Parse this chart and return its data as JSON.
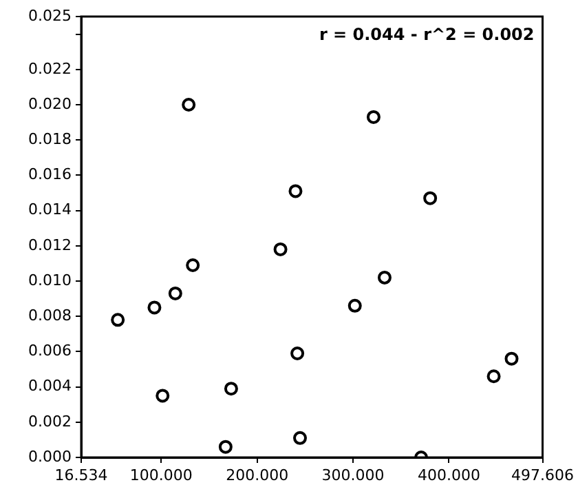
{
  "chart_data": {
    "type": "scatter",
    "marker": "circle",
    "grid": false,
    "legend": false,
    "annotations": [
      "r = 0.044 - r^2 = 0.002"
    ],
    "xlim": [
      16.534,
      497.606
    ],
    "xticks": [
      16.534,
      {
        "value": 100,
        "label": "100.000"
      },
      {
        "value": 200,
        "label": "200.000"
      },
      {
        "value": 300,
        "label": "300.000"
      },
      {
        "value": 400,
        "label": "400.000"
      },
      497.606
    ],
    "ylim": [
      0,
      0.025
    ],
    "yticks": [
      {
        "value": 0,
        "label": "0.000"
      },
      {
        "value": 0.002,
        "label": "0.002"
      },
      {
        "value": 0.004,
        "label": "0.004"
      },
      {
        "value": 0.006,
        "label": "0.006"
      },
      {
        "value": 0.008,
        "label": "0.008"
      },
      {
        "value": 0.01,
        "label": "0.010"
      },
      {
        "value": 0.012,
        "label": "0.012"
      },
      {
        "value": 0.014,
        "label": "0.014"
      },
      {
        "value": 0.016,
        "label": "0.016"
      },
      {
        "value": 0.018,
        "label": "0.018"
      },
      {
        "value": 0.02,
        "label": "0.020"
      },
      {
        "value": 0.022,
        "label": "0.022"
      },
      {
        "value": 0.024,
        "label": null
      },
      {
        "value": 0.025,
        "label": "0.025"
      }
    ],
    "series": [
      {
        "color": "#000000",
        "x": [
          128.6,
          240.0,
          224.3,
          132.9,
          114.7,
          92.9,
          54.7,
          301.9,
          241.9,
          101.4,
          172.9,
          244.7,
          167.1,
          321.4,
          380.4,
          332.9,
          446.7,
          465.3,
          371.0
        ],
        "values": [
          0.02,
          0.0151,
          0.0118,
          0.0109,
          0.0093,
          0.0085,
          0.0078,
          0.0086,
          0.0059,
          0.0035,
          0.0039,
          0.0011,
          0.0006,
          0.0193,
          0.0147,
          0.0102,
          0.0046,
          0.0056,
          0.0
        ]
      }
    ]
  }
}
